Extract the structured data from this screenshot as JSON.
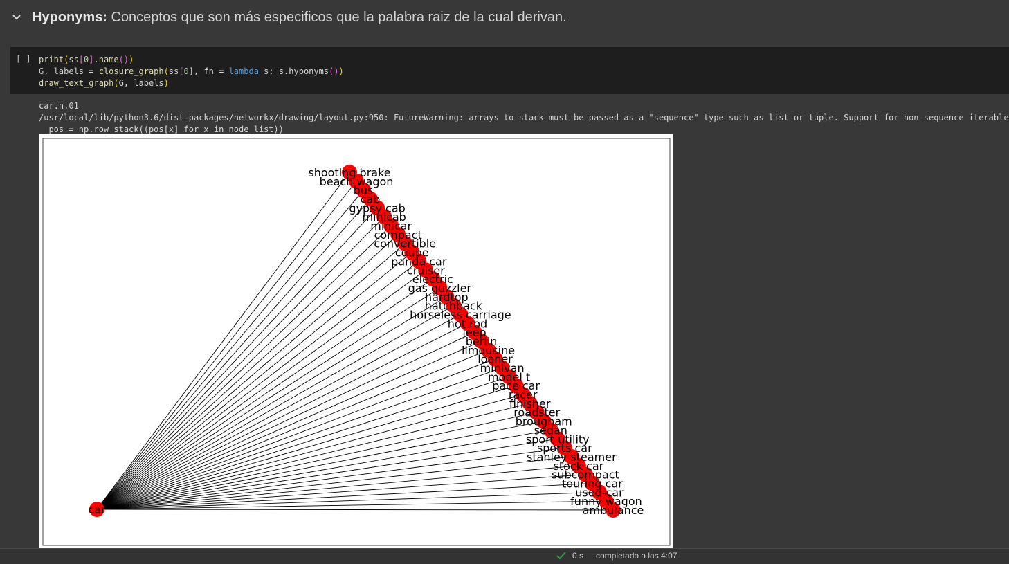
{
  "section": {
    "title_bold": "Hyponyms:",
    "title_rest": " Conceptos que son más especificos que la palabra raiz de la cual derivan.",
    "toggle_icon": "chevron-down-icon"
  },
  "cell": {
    "run_label": "[ ]",
    "code": {
      "l1": {
        "a": "print",
        "b": "(",
        "c": "ss",
        "d": "[",
        "e": "0",
        "f": "]",
        "g": ".name",
        "h": "()",
        "i": ")"
      },
      "l2": {
        "a": "G, labels = ",
        "b": "closure_graph",
        "c": "(",
        "d": "ss",
        "e": "[",
        "f": "0",
        "g": "], fn = ",
        "h": "lambda",
        "i": " s: s.hyponyms",
        "j": "()",
        "k": ")"
      },
      "l3": {
        "a": "draw_text_graph",
        "b": "(",
        "c": "G, labels",
        "d": ")"
      }
    }
  },
  "output": {
    "line1": "car.n.01",
    "line2": "/usr/local/lib/python3.6/dist-packages/networkx/drawing/layout.py:950: FutureWarning: arrays to stack must be passed as a \"sequence\" type such as list or tuple. Support for non-sequence iterables such as generators is deprecated",
    "line3": "  pos = np.row_stack((pos[x] for x in node_list))"
  },
  "graph": {
    "root": "car",
    "node_color": "#ff0000",
    "edge_color": "#000000",
    "nodes": [
      "shooting_brake",
      "beach_wagon",
      "bus",
      "cab",
      "gypsy_cab",
      "minicab",
      "minicar",
      "compact",
      "convertible",
      "coupe",
      "panda_car",
      "cruiser",
      "electric",
      "gas_guzzler",
      "hardtop",
      "hatchback",
      "horseless_carriage",
      "hot_rod",
      "jeep",
      "berlin",
      "limousine",
      "loaner",
      "minivan",
      "model_t",
      "pace_car",
      "racer",
      "finisher",
      "roadster",
      "brougham",
      "sedan",
      "sport_utility",
      "sports_car",
      "stanley_steamer",
      "stock_car",
      "subcompact",
      "touring_car",
      "used-car",
      "funny_wagon",
      "ambulance"
    ],
    "labels": [
      "shooting brake",
      "beach wagon",
      "bus",
      "cab",
      "gypsy cab",
      "minicab",
      "minicar",
      "compact",
      "convertible",
      "coupe",
      "panda car",
      "cruiser",
      "electric",
      "gas guzzler",
      "hardtop",
      "hatchback",
      "horseless carriage",
      "hot rod",
      "jeep",
      "berlin",
      "limousine",
      "loaner",
      "minivan",
      "model t",
      "pace car",
      "racer",
      "finisher",
      "roadster",
      "brougham",
      "sedan",
      "sport utility",
      "sports car",
      "stanley steamer",
      "stock car",
      "subcompact",
      "touring car",
      "used-car",
      "funny wagon",
      "ambulance"
    ]
  },
  "status": {
    "check_icon": "check-icon",
    "elapsed": "0 s",
    "text": "completado a las 4:07",
    "check_color": "#2e9e4d"
  }
}
